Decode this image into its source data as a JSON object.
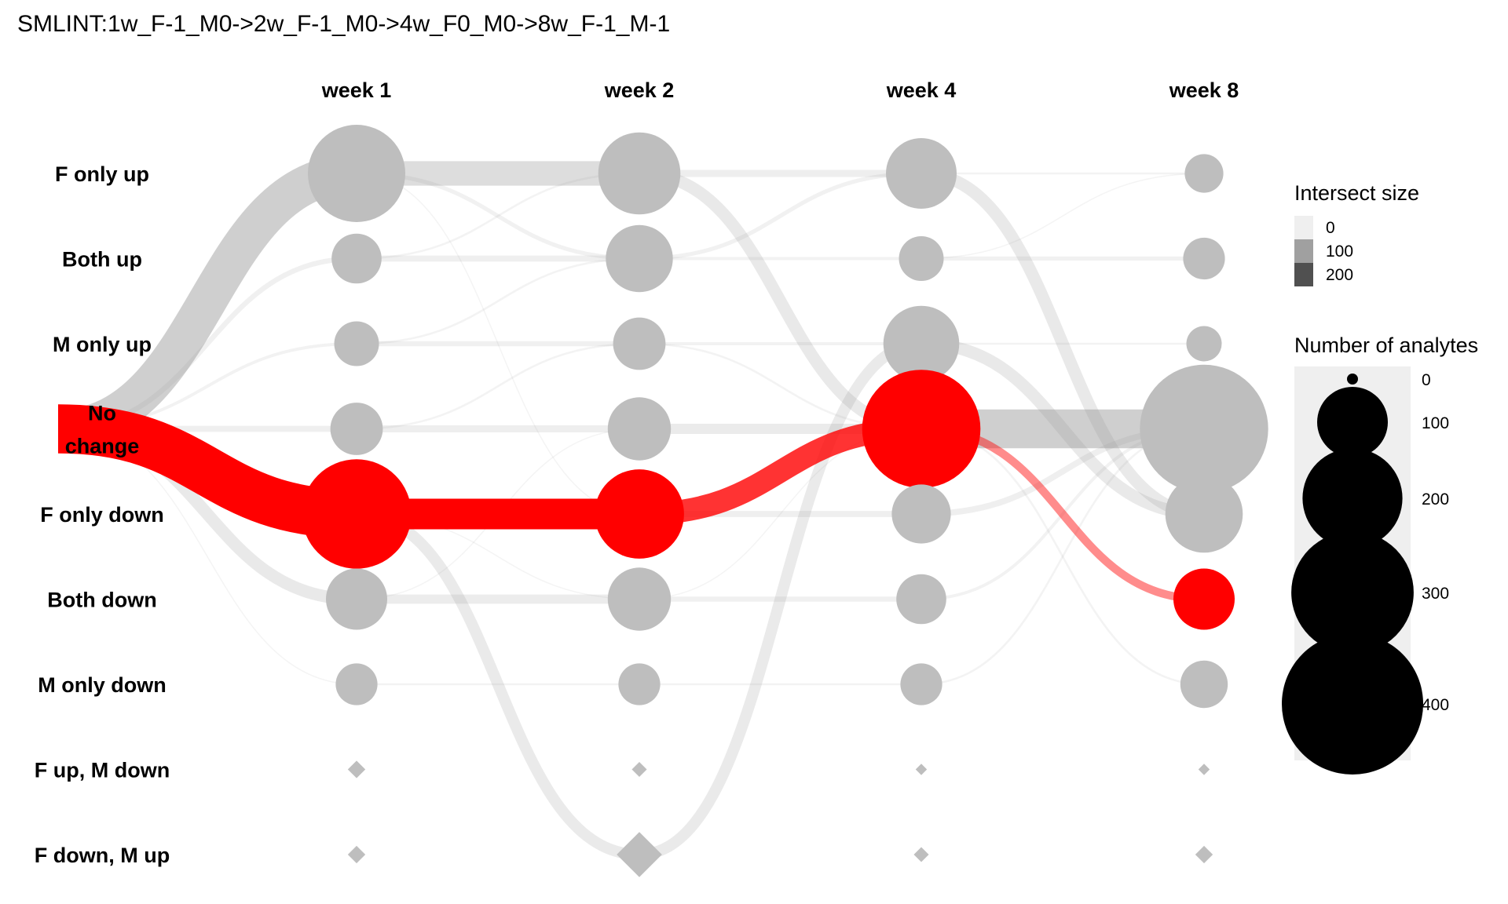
{
  "chart_data": {
    "type": "alluvial-dotplot",
    "title": "SMLINT:1w_F-1_M0->2w_F-1_M0->4w_F0_M0->8w_F-1_M-1",
    "columns": [
      "week 1",
      "week 2",
      "week 4",
      "week 8"
    ],
    "rows": [
      "F only up",
      "Both up",
      "M only up",
      "No change",
      "F only down",
      "Both down",
      "M only down",
      "F up, M down",
      "F down, M up"
    ],
    "row_label_lines": [
      [
        "F only up"
      ],
      [
        "Both up"
      ],
      [
        "M only up"
      ],
      [
        "No",
        "change"
      ],
      [
        "F only down"
      ],
      [
        "Both down"
      ],
      [
        "M only down"
      ],
      [
        "F up, M down"
      ],
      [
        "F down, M up"
      ]
    ],
    "highlight_path": [
      "F only down",
      "F only down",
      "No change",
      "Both down"
    ],
    "nodes": [
      {
        "col": 0,
        "row": 0,
        "size": 190,
        "shape": "circle",
        "highlight": false
      },
      {
        "col": 0,
        "row": 1,
        "size": 50,
        "shape": "circle",
        "highlight": false
      },
      {
        "col": 0,
        "row": 2,
        "size": 40,
        "shape": "circle",
        "highlight": false
      },
      {
        "col": 0,
        "row": 3,
        "size": 55,
        "shape": "circle",
        "highlight": false
      },
      {
        "col": 0,
        "row": 4,
        "size": 240,
        "shape": "circle",
        "highlight": true
      },
      {
        "col": 0,
        "row": 5,
        "size": 75,
        "shape": "circle",
        "highlight": false
      },
      {
        "col": 0,
        "row": 6,
        "size": 35,
        "shape": "circle",
        "highlight": false
      },
      {
        "col": 0,
        "row": 7,
        "size": 5,
        "shape": "diamond",
        "highlight": false
      },
      {
        "col": 0,
        "row": 8,
        "size": 5,
        "shape": "diamond",
        "highlight": false
      },
      {
        "col": 1,
        "row": 0,
        "size": 135,
        "shape": "circle",
        "highlight": false
      },
      {
        "col": 1,
        "row": 1,
        "size": 90,
        "shape": "circle",
        "highlight": false
      },
      {
        "col": 1,
        "row": 2,
        "size": 55,
        "shape": "circle",
        "highlight": false
      },
      {
        "col": 1,
        "row": 3,
        "size": 80,
        "shape": "circle",
        "highlight": false
      },
      {
        "col": 1,
        "row": 4,
        "size": 160,
        "shape": "circle",
        "highlight": true
      },
      {
        "col": 1,
        "row": 5,
        "size": 80,
        "shape": "circle",
        "highlight": false
      },
      {
        "col": 1,
        "row": 6,
        "size": 35,
        "shape": "circle",
        "highlight": false
      },
      {
        "col": 1,
        "row": 7,
        "size": 3,
        "shape": "diamond",
        "highlight": false
      },
      {
        "col": 1,
        "row": 8,
        "size": 60,
        "shape": "diamond",
        "highlight": false
      },
      {
        "col": 2,
        "row": 0,
        "size": 100,
        "shape": "circle",
        "highlight": false
      },
      {
        "col": 2,
        "row": 1,
        "size": 40,
        "shape": "circle",
        "highlight": false
      },
      {
        "col": 2,
        "row": 2,
        "size": 115,
        "shape": "circle",
        "highlight": false
      },
      {
        "col": 2,
        "row": 3,
        "size": 280,
        "shape": "circle",
        "highlight": true
      },
      {
        "col": 2,
        "row": 4,
        "size": 70,
        "shape": "circle",
        "highlight": false
      },
      {
        "col": 2,
        "row": 5,
        "size": 50,
        "shape": "circle",
        "highlight": false
      },
      {
        "col": 2,
        "row": 6,
        "size": 35,
        "shape": "circle",
        "highlight": false
      },
      {
        "col": 2,
        "row": 7,
        "size": 1,
        "shape": "diamond",
        "highlight": false
      },
      {
        "col": 2,
        "row": 8,
        "size": 3,
        "shape": "diamond",
        "highlight": false
      },
      {
        "col": 3,
        "row": 0,
        "size": 30,
        "shape": "circle",
        "highlight": false
      },
      {
        "col": 3,
        "row": 1,
        "size": 35,
        "shape": "circle",
        "highlight": false
      },
      {
        "col": 3,
        "row": 2,
        "size": 25,
        "shape": "circle",
        "highlight": false
      },
      {
        "col": 3,
        "row": 3,
        "size": 330,
        "shape": "circle",
        "highlight": false
      },
      {
        "col": 3,
        "row": 4,
        "size": 120,
        "shape": "circle",
        "highlight": false
      },
      {
        "col": 3,
        "row": 5,
        "size": 75,
        "shape": "circle",
        "highlight": true
      },
      {
        "col": 3,
        "row": 6,
        "size": 45,
        "shape": "circle",
        "highlight": false
      },
      {
        "col": 3,
        "row": 7,
        "size": 1,
        "shape": "diamond",
        "highlight": false
      },
      {
        "col": 3,
        "row": 8,
        "size": 5,
        "shape": "diamond",
        "highlight": false
      }
    ],
    "flows": [
      {
        "from": [
          -1,
          3
        ],
        "to": [
          0,
          0
        ],
        "size": 190,
        "highlight": false
      },
      {
        "from": [
          -1,
          3
        ],
        "to": [
          0,
          4
        ],
        "size": 240,
        "highlight": true
      },
      {
        "from": [
          -1,
          3
        ],
        "to": [
          0,
          5
        ],
        "size": 60,
        "highlight": false
      },
      {
        "from": [
          -1,
          3
        ],
        "to": [
          0,
          3
        ],
        "size": 30,
        "highlight": false
      },
      {
        "from": [
          -1,
          3
        ],
        "to": [
          0,
          1
        ],
        "size": 25,
        "highlight": false
      },
      {
        "from": [
          -1,
          3
        ],
        "to": [
          0,
          2
        ],
        "size": 15,
        "highlight": false
      },
      {
        "from": [
          -1,
          3
        ],
        "to": [
          0,
          6
        ],
        "size": 5,
        "highlight": false
      },
      {
        "from": [
          0,
          0
        ],
        "to": [
          1,
          0
        ],
        "size": 120,
        "highlight": false
      },
      {
        "from": [
          0,
          0
        ],
        "to": [
          1,
          1
        ],
        "size": 20,
        "highlight": false
      },
      {
        "from": [
          0,
          0
        ],
        "to": [
          1,
          4
        ],
        "size": 5,
        "highlight": false
      },
      {
        "from": [
          0,
          1
        ],
        "to": [
          1,
          1
        ],
        "size": 30,
        "highlight": false
      },
      {
        "from": [
          0,
          1
        ],
        "to": [
          1,
          0
        ],
        "size": 10,
        "highlight": false
      },
      {
        "from": [
          0,
          2
        ],
        "to": [
          1,
          2
        ],
        "size": 25,
        "highlight": false
      },
      {
        "from": [
          0,
          2
        ],
        "to": [
          1,
          1
        ],
        "size": 10,
        "highlight": false
      },
      {
        "from": [
          0,
          3
        ],
        "to": [
          1,
          3
        ],
        "size": 35,
        "highlight": false
      },
      {
        "from": [
          0,
          3
        ],
        "to": [
          1,
          2
        ],
        "size": 10,
        "highlight": false
      },
      {
        "from": [
          0,
          4
        ],
        "to": [
          1,
          4
        ],
        "size": 150,
        "highlight": true
      },
      {
        "from": [
          0,
          4
        ],
        "to": [
          1,
          8
        ],
        "size": 55,
        "highlight": false
      },
      {
        "from": [
          0,
          4
        ],
        "to": [
          1,
          5
        ],
        "size": 5,
        "highlight": false
      },
      {
        "from": [
          0,
          5
        ],
        "to": [
          1,
          5
        ],
        "size": 45,
        "highlight": false
      },
      {
        "from": [
          0,
          5
        ],
        "to": [
          1,
          3
        ],
        "size": 5,
        "highlight": false
      },
      {
        "from": [
          0,
          6
        ],
        "to": [
          1,
          6
        ],
        "size": 10,
        "highlight": false
      },
      {
        "from": [
          1,
          0
        ],
        "to": [
          2,
          0
        ],
        "size": 35,
        "highlight": false
      },
      {
        "from": [
          1,
          0
        ],
        "to": [
          2,
          3
        ],
        "size": 60,
        "highlight": false
      },
      {
        "from": [
          1,
          1
        ],
        "to": [
          2,
          0
        ],
        "size": 20,
        "highlight": false
      },
      {
        "from": [
          1,
          1
        ],
        "to": [
          2,
          1
        ],
        "size": 15,
        "highlight": false
      },
      {
        "from": [
          1,
          2
        ],
        "to": [
          2,
          2
        ],
        "size": 15,
        "highlight": false
      },
      {
        "from": [
          1,
          2
        ],
        "to": [
          2,
          3
        ],
        "size": 10,
        "highlight": false
      },
      {
        "from": [
          1,
          3
        ],
        "to": [
          2,
          3
        ],
        "size": 50,
        "highlight": false
      },
      {
        "from": [
          1,
          4
        ],
        "to": [
          2,
          3
        ],
        "size": 110,
        "highlight": true
      },
      {
        "from": [
          1,
          4
        ],
        "to": [
          2,
          4
        ],
        "size": 30,
        "highlight": false
      },
      {
        "from": [
          1,
          5
        ],
        "to": [
          2,
          5
        ],
        "size": 25,
        "highlight": false
      },
      {
        "from": [
          1,
          5
        ],
        "to": [
          2,
          3
        ],
        "size": 5,
        "highlight": false
      },
      {
        "from": [
          1,
          6
        ],
        "to": [
          2,
          6
        ],
        "size": 10,
        "highlight": false
      },
      {
        "from": [
          1,
          8
        ],
        "to": [
          2,
          2
        ],
        "size": 55,
        "highlight": false
      },
      {
        "from": [
          2,
          0
        ],
        "to": [
          3,
          4
        ],
        "size": 60,
        "highlight": false
      },
      {
        "from": [
          2,
          0
        ],
        "to": [
          3,
          0
        ],
        "size": 10,
        "highlight": false
      },
      {
        "from": [
          2,
          1
        ],
        "to": [
          3,
          1
        ],
        "size": 20,
        "highlight": false
      },
      {
        "from": [
          2,
          2
        ],
        "to": [
          3,
          4
        ],
        "size": 60,
        "highlight": false
      },
      {
        "from": [
          2,
          2
        ],
        "to": [
          3,
          2
        ],
        "size": 10,
        "highlight": false
      },
      {
        "from": [
          2,
          3
        ],
        "to": [
          3,
          3
        ],
        "size": 190,
        "highlight": false
      },
      {
        "from": [
          2,
          3
        ],
        "to": [
          3,
          5
        ],
        "size": 40,
        "highlight": true
      },
      {
        "from": [
          2,
          3
        ],
        "to": [
          3,
          6
        ],
        "size": 10,
        "highlight": false
      },
      {
        "from": [
          2,
          4
        ],
        "to": [
          3,
          3
        ],
        "size": 30,
        "highlight": false
      },
      {
        "from": [
          2,
          5
        ],
        "to": [
          3,
          3
        ],
        "size": 15,
        "highlight": false
      },
      {
        "from": [
          2,
          6
        ],
        "to": [
          3,
          3
        ],
        "size": 10,
        "highlight": false
      },
      {
        "from": [
          2,
          1
        ],
        "to": [
          3,
          0
        ],
        "size": 5,
        "highlight": false
      }
    ],
    "legend": {
      "intersect_title": "Intersect size",
      "intersect_labels": [
        "0",
        "100",
        "200"
      ],
      "analytes_title": "Number of analytes",
      "analytes_labels": [
        "0",
        "100",
        "200",
        "300",
        "400"
      ],
      "analytes_values": [
        0,
        100,
        200,
        300,
        400
      ]
    },
    "colors": {
      "node": "#bebebe",
      "node_highlight": "#ff0000",
      "flow_grey": "#9a9a9a",
      "flow_red": "#ff0000",
      "legend_bg": "#efefef",
      "intersect_swatches": [
        "#efefef",
        "#a0a0a0",
        "#505050"
      ]
    }
  }
}
